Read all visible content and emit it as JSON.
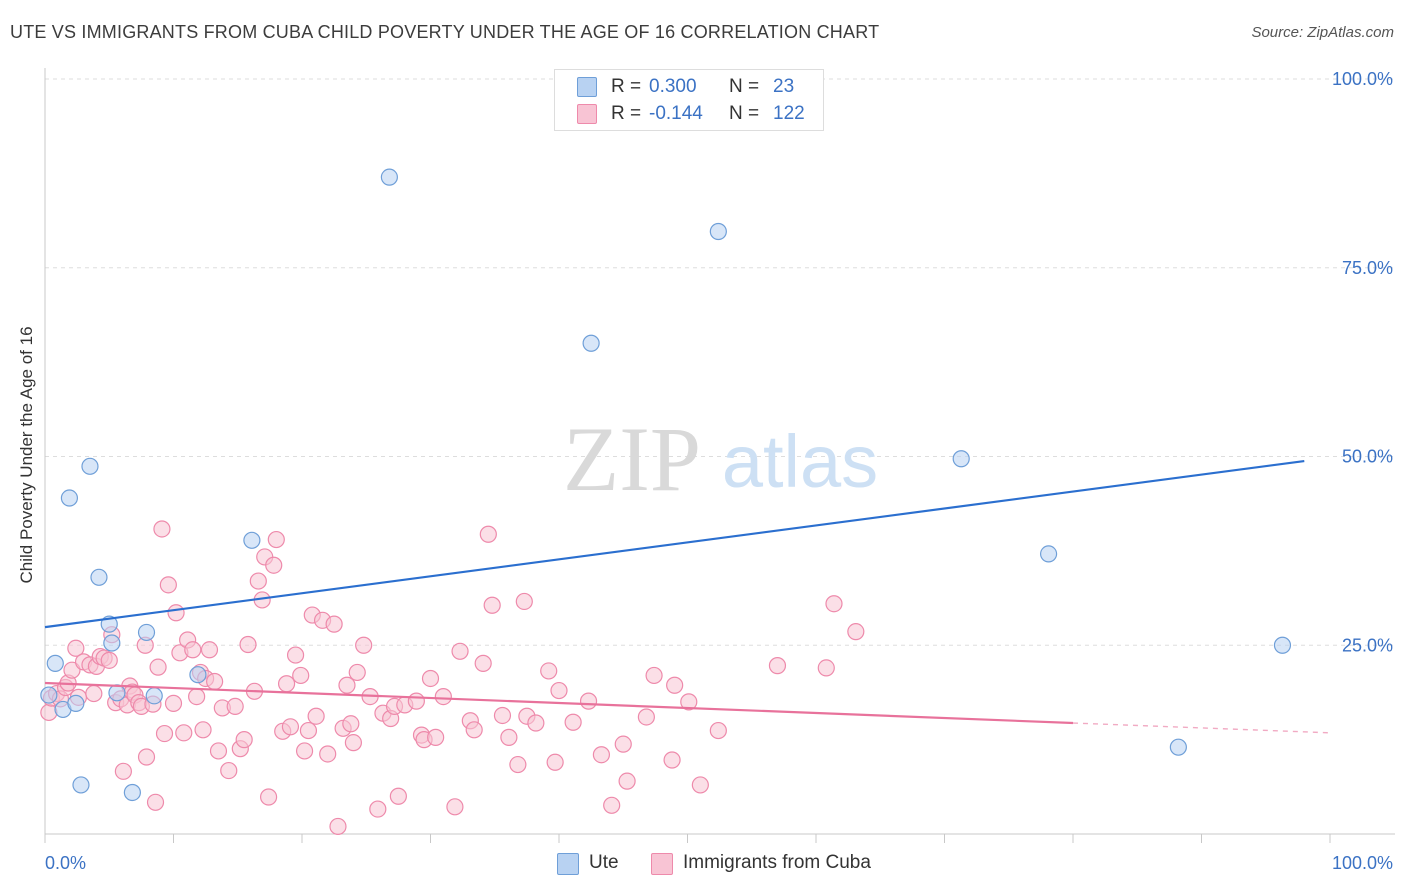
{
  "header": {
    "title": "UTE VS IMMIGRANTS FROM CUBA CHILD POVERTY UNDER THE AGE OF 16 CORRELATION CHART",
    "source": "Source: ZipAtlas.com"
  },
  "watermark": {
    "zip": "ZIP",
    "atlas": "atlas"
  },
  "legend_top": {
    "rows": [
      {
        "r_label": "R =",
        "r_value": "0.300",
        "n_label": "N =",
        "n_value": "23"
      },
      {
        "r_label": "R =",
        "r_value": "-0.144",
        "n_label": "N =",
        "n_value": "122"
      }
    ]
  },
  "legend_bottom": {
    "items": [
      "Ute",
      "Immigrants from Cuba"
    ]
  },
  "colors": {
    "ute_fill": "#b8d2f2",
    "ute_stroke": "#6f9fd8",
    "ute_line": "#2b6fcf",
    "cuba_fill": "#f8c4d4",
    "cuba_stroke": "#ee8aab",
    "cuba_line": "#e8729b",
    "tick_label": "#3b72c4",
    "grid": "#dddddd"
  },
  "chart_data": {
    "type": "scatter",
    "title": "UTE VS IMMIGRANTS FROM CUBA CHILD POVERTY UNDER THE AGE OF 16 CORRELATION CHART",
    "xlabel": "",
    "ylabel": "Child Poverty Under the Age of 16",
    "xlim": [
      0,
      100
    ],
    "ylim": [
      0,
      100
    ],
    "x_tick_labels": [
      "0.0%",
      "100.0%"
    ],
    "y_tick_labels": [
      "25.0%",
      "50.0%",
      "75.0%",
      "100.0%"
    ],
    "y_ticks": [
      25,
      50,
      75,
      100
    ],
    "grid": true,
    "legend_position": "top-center",
    "series": [
      {
        "name": "Ute",
        "R": 0.3,
        "N": 23,
        "trend": {
          "x0": 0,
          "y0": 27.4,
          "x1": 98,
          "y1": 49.4
        },
        "points": [
          [
            0.3,
            18.4
          ],
          [
            0.8,
            22.6
          ],
          [
            1.4,
            16.5
          ],
          [
            1.9,
            44.5
          ],
          [
            2.4,
            17.3
          ],
          [
            2.8,
            6.5
          ],
          [
            3.5,
            48.7
          ],
          [
            4.2,
            34.0
          ],
          [
            5.0,
            27.8
          ],
          [
            5.2,
            25.3
          ],
          [
            5.6,
            18.7
          ],
          [
            6.8,
            5.5
          ],
          [
            7.9,
            26.7
          ],
          [
            8.5,
            18.3
          ],
          [
            11.9,
            21.1
          ],
          [
            16.1,
            38.9
          ],
          [
            26.8,
            87.0
          ],
          [
            42.5,
            65.0
          ],
          [
            52.4,
            79.8
          ],
          [
            71.3,
            49.7
          ],
          [
            78.1,
            37.1
          ],
          [
            88.2,
            11.5
          ],
          [
            96.3,
            25.0
          ]
        ]
      },
      {
        "name": "Immigrants from Cuba",
        "R": -0.144,
        "N": 122,
        "trend": {
          "x0": 0,
          "y0": 20.0,
          "x1": 80,
          "y1": 14.7,
          "dashed_to_x": 100,
          "dashed_to_y": 13.4
        },
        "points": [
          [
            0.3,
            16.1
          ],
          [
            0.5,
            18.0
          ],
          [
            0.9,
            18.6
          ],
          [
            1.2,
            17.9
          ],
          [
            1.6,
            19.4
          ],
          [
            1.8,
            20.0
          ],
          [
            2.1,
            21.7
          ],
          [
            2.4,
            24.6
          ],
          [
            2.6,
            18.1
          ],
          [
            3.0,
            22.8
          ],
          [
            3.5,
            22.4
          ],
          [
            3.8,
            18.6
          ],
          [
            4.0,
            22.2
          ],
          [
            4.3,
            23.5
          ],
          [
            4.6,
            23.3
          ],
          [
            5.0,
            23.0
          ],
          [
            5.2,
            26.4
          ],
          [
            5.5,
            17.4
          ],
          [
            5.9,
            17.9
          ],
          [
            6.1,
            8.3
          ],
          [
            6.4,
            17.1
          ],
          [
            6.6,
            19.6
          ],
          [
            6.8,
            18.8
          ],
          [
            7.0,
            18.4
          ],
          [
            7.3,
            17.4
          ],
          [
            7.5,
            16.9
          ],
          [
            7.8,
            25.0
          ],
          [
            7.9,
            10.2
          ],
          [
            8.4,
            17.2
          ],
          [
            8.6,
            4.2
          ],
          [
            8.8,
            22.1
          ],
          [
            9.1,
            40.4
          ],
          [
            9.3,
            13.3
          ],
          [
            9.6,
            33.0
          ],
          [
            10.0,
            17.3
          ],
          [
            10.2,
            29.3
          ],
          [
            10.5,
            24.0
          ],
          [
            10.8,
            13.4
          ],
          [
            11.1,
            25.7
          ],
          [
            11.5,
            24.4
          ],
          [
            11.8,
            18.2
          ],
          [
            12.1,
            21.4
          ],
          [
            12.3,
            13.8
          ],
          [
            12.5,
            20.6
          ],
          [
            12.8,
            24.4
          ],
          [
            13.2,
            20.2
          ],
          [
            13.5,
            11.0
          ],
          [
            13.8,
            16.7
          ],
          [
            14.3,
            8.4
          ],
          [
            14.8,
            16.9
          ],
          [
            15.2,
            11.3
          ],
          [
            15.5,
            12.5
          ],
          [
            15.8,
            25.1
          ],
          [
            16.3,
            18.9
          ],
          [
            16.6,
            33.5
          ],
          [
            16.9,
            31.0
          ],
          [
            17.1,
            36.7
          ],
          [
            17.4,
            4.9
          ],
          [
            17.8,
            35.6
          ],
          [
            18.0,
            39.0
          ],
          [
            18.5,
            13.6
          ],
          [
            18.8,
            19.9
          ],
          [
            19.1,
            14.2
          ],
          [
            19.5,
            23.7
          ],
          [
            19.9,
            21.0
          ],
          [
            20.2,
            11.0
          ],
          [
            20.5,
            13.7
          ],
          [
            20.8,
            29.0
          ],
          [
            21.1,
            15.6
          ],
          [
            21.6,
            28.3
          ],
          [
            22.0,
            10.6
          ],
          [
            22.5,
            27.8
          ],
          [
            22.8,
            1.0
          ],
          [
            23.2,
            14.0
          ],
          [
            23.5,
            19.7
          ],
          [
            23.8,
            14.6
          ],
          [
            24.0,
            12.1
          ],
          [
            24.3,
            21.4
          ],
          [
            24.8,
            25.0
          ],
          [
            25.3,
            18.2
          ],
          [
            25.9,
            3.3
          ],
          [
            26.3,
            16.0
          ],
          [
            26.9,
            15.3
          ],
          [
            27.2,
            16.9
          ],
          [
            27.5,
            5.0
          ],
          [
            28.0,
            17.1
          ],
          [
            28.9,
            17.6
          ],
          [
            29.3,
            13.1
          ],
          [
            29.5,
            12.5
          ],
          [
            30.0,
            20.6
          ],
          [
            30.4,
            12.8
          ],
          [
            31.0,
            18.2
          ],
          [
            31.9,
            3.6
          ],
          [
            32.3,
            24.2
          ],
          [
            33.1,
            15.0
          ],
          [
            33.4,
            13.8
          ],
          [
            34.1,
            22.6
          ],
          [
            34.5,
            39.7
          ],
          [
            34.8,
            30.3
          ],
          [
            35.6,
            15.7
          ],
          [
            36.1,
            12.8
          ],
          [
            36.8,
            9.2
          ],
          [
            37.3,
            30.8
          ],
          [
            37.5,
            15.6
          ],
          [
            38.2,
            14.7
          ],
          [
            39.2,
            21.6
          ],
          [
            39.7,
            9.5
          ],
          [
            40.0,
            19.0
          ],
          [
            41.1,
            14.8
          ],
          [
            42.3,
            17.6
          ],
          [
            43.3,
            10.5
          ],
          [
            44.1,
            3.8
          ],
          [
            45.0,
            11.9
          ],
          [
            45.3,
            7.0
          ],
          [
            46.8,
            15.5
          ],
          [
            47.4,
            21.0
          ],
          [
            48.8,
            9.8
          ],
          [
            49.0,
            19.7
          ],
          [
            50.1,
            17.5
          ],
          [
            51.0,
            6.5
          ],
          [
            52.4,
            13.7
          ],
          [
            57.0,
            22.3
          ],
          [
            60.8,
            22.0
          ],
          [
            61.4,
            30.5
          ],
          [
            63.1,
            26.8
          ]
        ]
      }
    ]
  }
}
